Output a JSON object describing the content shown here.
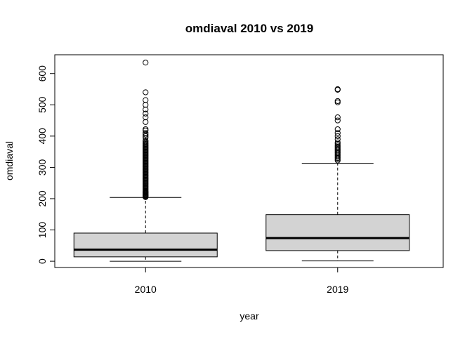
{
  "chart_data": {
    "type": "box",
    "title": "omdiaval 2010 vs 2019",
    "xlabel": "year",
    "ylabel": "omdiaval",
    "categories": [
      "2010",
      "2019"
    ],
    "ylim": [
      -20,
      660
    ],
    "yticks": [
      0,
      100,
      200,
      300,
      400,
      500,
      600
    ],
    "ytick_labels": [
      "0",
      "100",
      "200",
      "300",
      "400",
      "500",
      "600"
    ],
    "grid": false,
    "legend": "none",
    "colors": {
      "box_fill": "#d3d3d3",
      "stroke": "#000000"
    },
    "boxes": [
      {
        "category": "2010",
        "whisker_low": 0,
        "q1": 14,
        "median": 37,
        "q3": 90,
        "whisker_high": 204,
        "outliers": [
          205,
          207,
          209,
          211,
          213,
          215,
          217,
          219,
          221,
          223,
          225,
          228,
          231,
          234,
          237,
          240,
          243,
          246,
          249,
          252,
          255,
          258,
          261,
          264,
          267,
          270,
          273,
          276,
          279,
          282,
          285,
          288,
          291,
          294,
          297,
          300,
          303,
          306,
          309,
          312,
          315,
          318,
          321,
          324,
          327,
          330,
          333,
          336,
          339,
          342,
          345,
          348,
          351,
          354,
          357,
          360,
          363,
          366,
          369,
          372,
          375,
          378,
          382,
          386,
          395,
          400,
          405,
          410,
          418,
          422,
          445,
          460,
          472,
          485,
          500,
          515,
          540,
          635
        ]
      },
      {
        "category": "2019",
        "whisker_low": 1,
        "q1": 34,
        "median": 74,
        "q3": 149,
        "whisker_high": 313,
        "outliers": [
          322,
          326,
          330,
          334,
          338,
          342,
          346,
          350,
          354,
          358,
          362,
          366,
          370,
          375,
          380,
          390,
          400,
          410,
          422,
          450,
          460,
          508,
          512,
          548,
          550
        ]
      }
    ]
  }
}
